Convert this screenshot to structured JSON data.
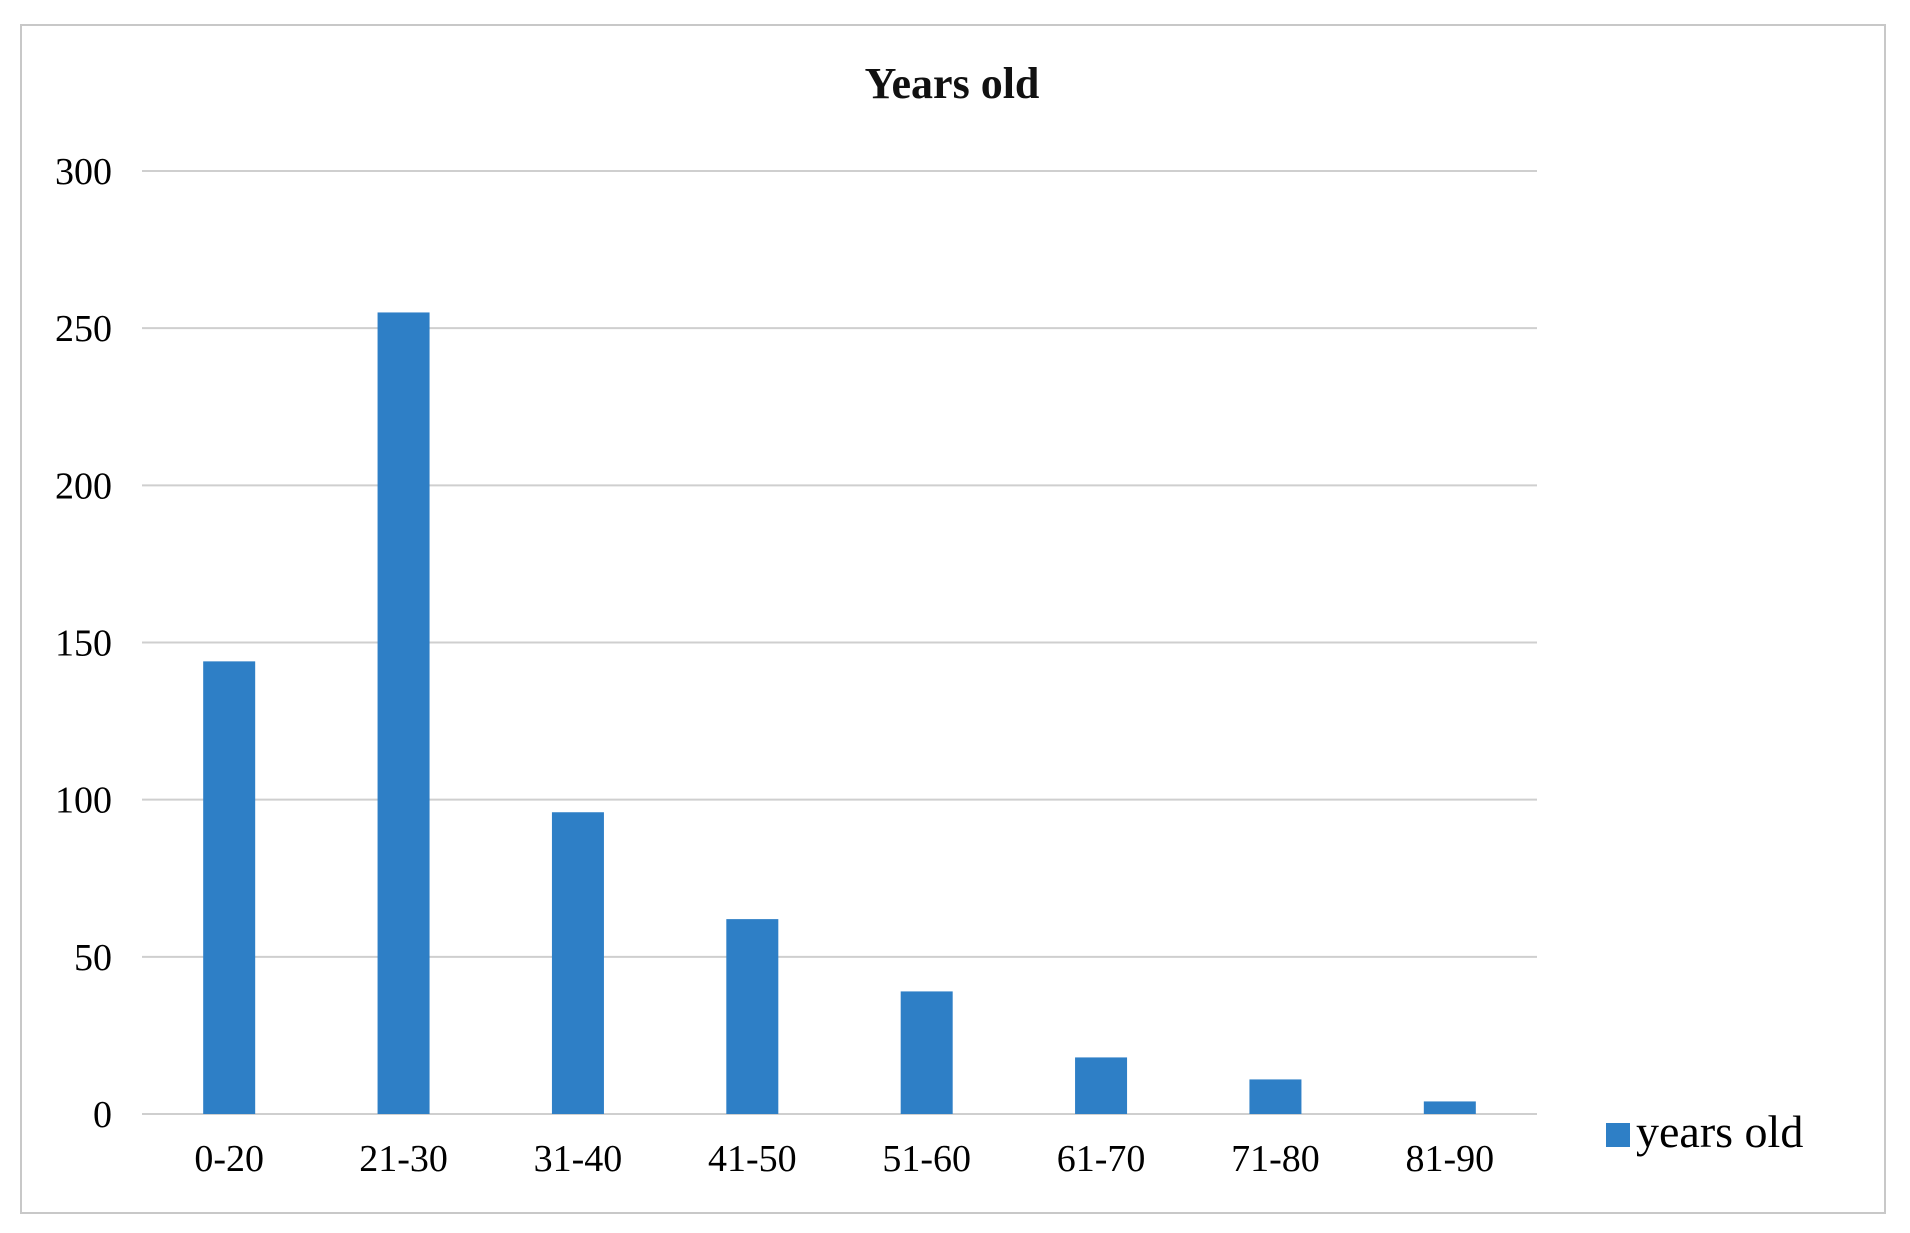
{
  "chart_data": {
    "type": "bar",
    "title": "Years old",
    "xlabel": "",
    "ylabel": "",
    "categories": [
      "0-20",
      "21-30",
      "31-40",
      "41-50",
      "51-60",
      "61-70",
      "71-80",
      "81-90"
    ],
    "series": [
      {
        "name": "years old",
        "values": [
          144,
          255,
          96,
          62,
          39,
          18,
          11,
          4
        ],
        "color": "#2e7fc6"
      }
    ],
    "ylim": [
      0,
      300
    ],
    "yticks": [
      "0",
      "50",
      "100",
      "150",
      "200",
      "250",
      "300"
    ],
    "grid": true,
    "gridColor": "#cfcfcf",
    "legend": {
      "position": "right-bottom",
      "entries": [
        "years old"
      ]
    }
  }
}
